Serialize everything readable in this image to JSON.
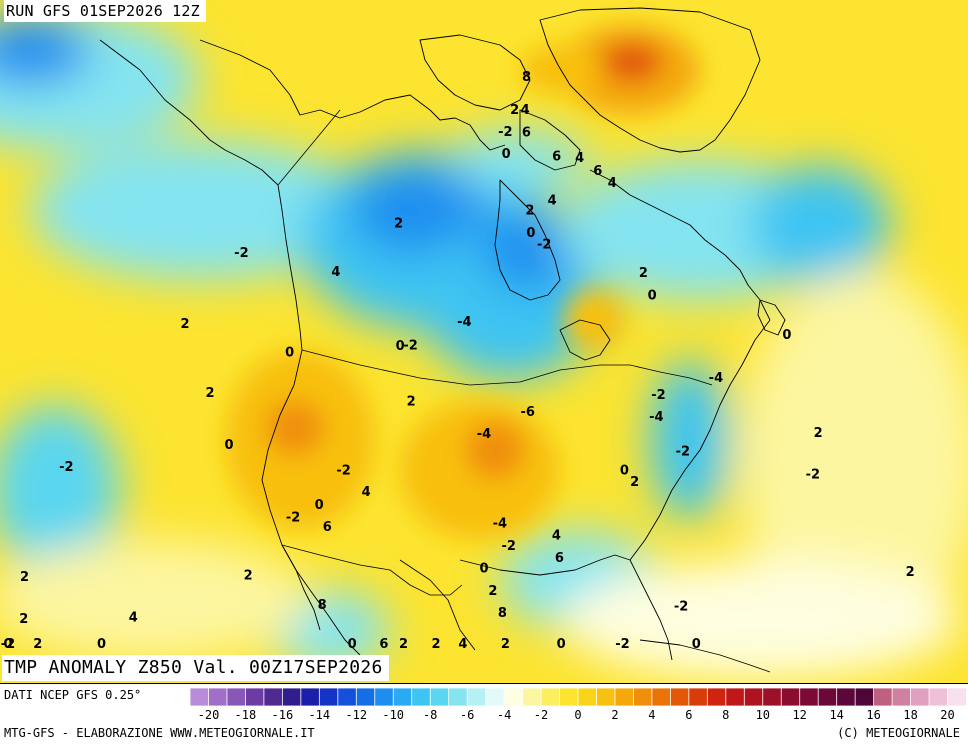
{
  "run_title": "RUN GFS 01SEP2026 12Z",
  "main_title": "TMP ANOMALY Z850 Val. 00Z17SEP2026",
  "data_source": "DATI NCEP GFS 0.25°",
  "credit_left": "MTG-GFS - ELABORAZIONE WWW.METEOGIORNALE.IT",
  "credit_right": "(C) METEOGIORNALE",
  "legend": {
    "min": -21,
    "max": 21,
    "step": 1,
    "tick_labels": [
      "-20",
      "-18",
      "-16",
      "-14",
      "-12",
      "-10",
      "-8",
      "-6",
      "-4",
      "-2",
      "0",
      "2",
      "4",
      "6",
      "8",
      "10",
      "12",
      "14",
      "16",
      "18",
      "20"
    ],
    "colors": [
      "#b88cd8",
      "#a070c8",
      "#8858b8",
      "#6c3ca4",
      "#502a90",
      "#301e8c",
      "#1a1ea8",
      "#1434c8",
      "#1450dc",
      "#146ee6",
      "#1c8ef0",
      "#2aaaf2",
      "#3ec4f2",
      "#5ad6f0",
      "#84e4f0",
      "#b4f0f4",
      "#e4fafa",
      "#fefee0",
      "#fdf6a0",
      "#fcee60",
      "#fce430",
      "#fbd418",
      "#f8c010",
      "#f4a80c",
      "#f0900a",
      "#ea7408",
      "#e25808",
      "#d83c08",
      "#ce2410",
      "#c01818",
      "#ae1420",
      "#9c102a",
      "#8c0c30",
      "#7c0a34",
      "#6c0838",
      "#5c063a",
      "#4c0638",
      "#c06080",
      "#d080a0",
      "#e0a0c0",
      "#f0c0d8",
      "#f8e0ec"
    ]
  },
  "palette": {
    "cold": "#1450dc",
    "cool": "#3ec4f2",
    "neutral": "#fefee0",
    "warm": "#fce430",
    "hot": "#f0900a",
    "very_hot": "#e25808"
  },
  "contour_labels": [
    {
      "text": "4",
      "lon": -60,
      "lat": 75
    },
    {
      "text": "-2",
      "lon": -170,
      "lat": 50
    },
    {
      "text": "2",
      "lon": -150,
      "lat": 55
    },
    {
      "text": "0",
      "lon": -140,
      "lat": 50
    },
    {
      "text": "-2",
      "lon": -120,
      "lat": 47
    },
    {
      "text": "2",
      "lon": -160,
      "lat": 40
    },
    {
      "text": "2",
      "lon": -155,
      "lat": 36
    },
    {
      "text": "4",
      "lon": -140,
      "lat": 35
    },
    {
      "text": "2",
      "lon": -128,
      "lat": 38
    },
    {
      "text": "-2",
      "lon": -125,
      "lat": 43
    },
    {
      "text": "0",
      "lon": -122,
      "lat": 44
    },
    {
      "text": "6",
      "lon": -120,
      "lat": 42
    },
    {
      "text": "4",
      "lon": -116,
      "lat": 45
    },
    {
      "text": "2",
      "lon": -112,
      "lat": 53
    },
    {
      "text": "4",
      "lon": -137,
      "lat": 65
    },
    {
      "text": "2",
      "lon": -125,
      "lat": 69
    },
    {
      "text": "0",
      "lon": -138,
      "lat": 58
    },
    {
      "text": "0",
      "lon": -116,
      "lat": 58
    },
    {
      "text": "-2",
      "lon": -114,
      "lat": 58
    },
    {
      "text": "-4",
      "lon": -104,
      "lat": 60
    },
    {
      "text": "-4",
      "lon": -100,
      "lat": 50
    },
    {
      "text": "-6",
      "lon": -93,
      "lat": 52
    },
    {
      "text": "-4",
      "lon": -98,
      "lat": 42
    },
    {
      "text": "-2",
      "lon": -97,
      "lat": 40
    },
    {
      "text": "0",
      "lon": -100,
      "lat": 38
    },
    {
      "text": "2",
      "lon": -99,
      "lat": 36
    },
    {
      "text": "4",
      "lon": -91,
      "lat": 41
    },
    {
      "text": "6",
      "lon": -91,
      "lat": 39
    },
    {
      "text": "8",
      "lon": -118,
      "lat": 35
    },
    {
      "text": "8",
      "lon": -98,
      "lat": 34
    },
    {
      "text": "6",
      "lon": -110,
      "lat": 29
    },
    {
      "text": "4",
      "lon": -102,
      "lat": 26
    },
    {
      "text": "2",
      "lon": -98,
      "lat": 25
    },
    {
      "text": "0",
      "lon": -93,
      "lat": 23
    },
    {
      "text": "-2",
      "lon": -87,
      "lat": 25
    },
    {
      "text": "0",
      "lon": -79,
      "lat": 28
    },
    {
      "text": "2",
      "lon": -104,
      "lat": 17
    },
    {
      "text": "0",
      "lon": -112,
      "lat": 23
    },
    {
      "text": "-2",
      "lon": -78,
      "lat": 35
    },
    {
      "text": "0",
      "lon": -80,
      "lat": 47
    },
    {
      "text": "2",
      "lon": -79,
      "lat": 46
    },
    {
      "text": "-4",
      "lon": -72,
      "lat": 52
    },
    {
      "text": "-2",
      "lon": -70,
      "lat": 49
    },
    {
      "text": "-2",
      "lon": -70,
      "lat": 54
    },
    {
      "text": "-4",
      "lon": -57,
      "lat": 56
    },
    {
      "text": "-2",
      "lon": -50,
      "lat": 48
    },
    {
      "text": "2",
      "lon": -43,
      "lat": 52
    },
    {
      "text": "2",
      "lon": -45,
      "lat": 40
    },
    {
      "text": "0",
      "lon": -30,
      "lat": 61
    },
    {
      "text": "2",
      "lon": -60,
      "lat": 65
    },
    {
      "text": "0",
      "lon": -61,
      "lat": 63
    },
    {
      "text": "-2",
      "lon": -90,
      "lat": 77
    },
    {
      "text": "0",
      "lon": -91,
      "lat": 75
    },
    {
      "text": "2",
      "lon": -83,
      "lat": 79
    },
    {
      "text": "4",
      "lon": -77,
      "lat": 79
    },
    {
      "text": "6",
      "lon": -80,
      "lat": 77
    },
    {
      "text": "8",
      "lon": -67,
      "lat": 82
    },
    {
      "text": "6",
      "lon": -70,
      "lat": 75
    },
    {
      "text": "6",
      "lon": -55,
      "lat": 74
    },
    {
      "text": "4",
      "lon": -52,
      "lat": 73
    },
    {
      "text": "4",
      "lon": -78,
      "lat": 71
    },
    {
      "text": "2",
      "lon": -86,
      "lat": 70
    },
    {
      "text": "0",
      "lon": -87,
      "lat": 68
    },
    {
      "text": "-2",
      "lon": -84,
      "lat": 67
    },
    {
      "text": "-2",
      "lon": -175,
      "lat": 68
    },
    {
      "text": "2",
      "lon": -172,
      "lat": 62
    },
    {
      "text": "0",
      "lon": -162,
      "lat": 32
    },
    {
      "text": "-2",
      "lon": -164,
      "lat": 34
    },
    {
      "text": "2",
      "lon": -150,
      "lat": 33
    },
    {
      "text": "0",
      "lon": -140,
      "lat": 30
    },
    {
      "text": "2",
      "lon": -107,
      "lat": 20
    }
  ]
}
